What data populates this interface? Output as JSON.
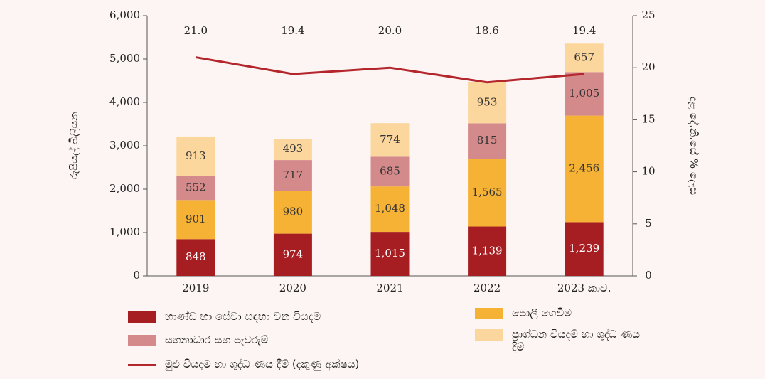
{
  "chart_data": {
    "type": "stacked-bar-line",
    "categories": [
      "2019",
      "2020",
      "2021",
      "2022",
      "2023 කාව."
    ],
    "ylabel": "රුපියල් බිලියන",
    "y2label": "දළ දේ.නි.යේ % ලෙස",
    "ylim": [
      0,
      6000
    ],
    "yticks": [
      0,
      {
        "value": 1000,
        "label": "1,000"
      },
      {
        "value": 2000,
        "label": "2,000"
      },
      {
        "value": 3000,
        "label": "3,000"
      },
      {
        "value": 4000,
        "label": "4,000"
      },
      {
        "value": 5000,
        "label": "5,000"
      },
      {
        "value": 6000,
        "label": "6,000"
      }
    ],
    "y2lim": [
      0,
      25
    ],
    "y2ticks": [
      0,
      5,
      10,
      15,
      20,
      25
    ],
    "series": [
      {
        "name": "භාණ්ඩ හා සේවා සඳහා වන වියදම",
        "color": "#a61e22",
        "values": [
          848,
          974,
          1015,
          1139,
          1239
        ],
        "value_labels": [
          "848",
          "974",
          "1,015",
          "1,139",
          "1,239"
        ]
      },
      {
        "name": "පොලී ගෙවීම",
        "color": "#f6b234",
        "values": [
          901,
          980,
          1048,
          1565,
          2456
        ],
        "value_labels": [
          "901",
          "980",
          "1,048",
          "1,565",
          "2,456"
        ]
      },
      {
        "name": "සහනාධාර සහ පැවරුම්",
        "color": "#d48a8b",
        "values": [
          552,
          717,
          685,
          815,
          1005
        ],
        "value_labels": [
          "552",
          "717",
          "685",
          "815",
          "1,005"
        ]
      },
      {
        "name": "ප්‍රාග්ධන වියදම් හා ශුද්ධ ණය දීම්",
        "color": "#fbd79e",
        "values": [
          913,
          493,
          774,
          953,
          657
        ]
      },
      {
        "name": "මුළු වියදම හා ශුද්ධ ණය දීම් (දකුණු අක්ෂය)",
        "color": "#b3262b",
        "axis": "y2",
        "values": [
          21.0,
          19.4,
          20.0,
          18.6,
          19.4
        ],
        "value_labels": [
          "21.0",
          "19.4",
          "20.0",
          "18.6",
          "19.4"
        ]
      }
    ]
  }
}
